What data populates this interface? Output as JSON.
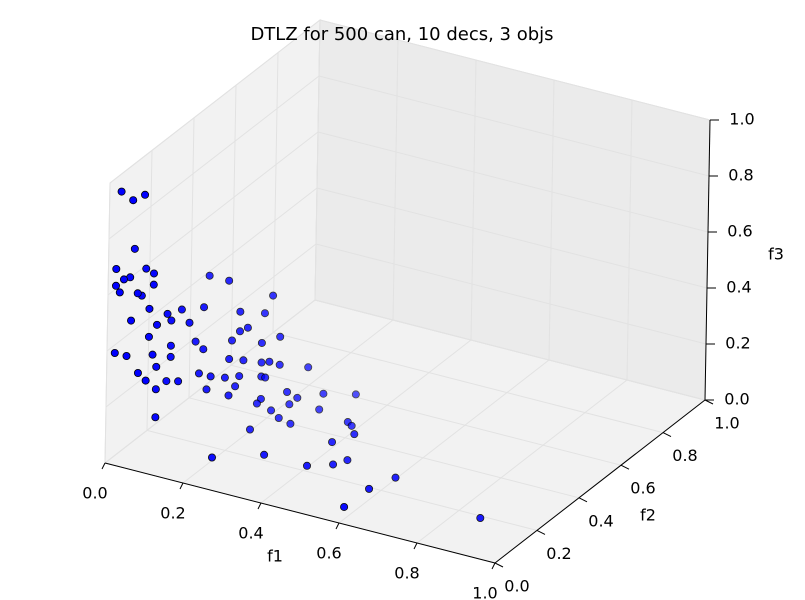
{
  "chart_data": {
    "type": "scatter3d",
    "title": "DTLZ for 500 can, 10 decs, 3 objs",
    "xlabel": "f1",
    "ylabel": "f2",
    "zlabel": "f3",
    "color": "#0000ff",
    "xlim": [
      0,
      1
    ],
    "ylim": [
      0,
      1
    ],
    "zlim": [
      0,
      1
    ],
    "xticks": [
      {
        "value": 0,
        "label": "0.0"
      },
      0.2,
      0.4,
      0.6,
      0.8,
      {
        "value": 1,
        "label": "1.0"
      }
    ],
    "yticks": [
      {
        "value": 0,
        "label": "0.0"
      },
      0.2,
      0.4,
      0.6,
      0.8,
      {
        "value": 1,
        "label": "1.0"
      }
    ],
    "zticks": [
      {
        "value": 0,
        "label": "0.0"
      },
      0.2,
      0.4,
      0.6,
      0.8,
      {
        "value": 1,
        "label": "1.0"
      }
    ],
    "grid": true,
    "x": [
      0.03,
      0.06,
      0.09,
      0.04,
      0.02,
      0.07,
      0.09,
      0.04,
      0.04,
      0.02,
      0.09,
      0.03,
      0.06,
      0.06,
      0.1,
      0.15,
      0.21,
      0.08,
      0.1,
      0.11,
      0.14,
      0.18,
      0.06,
      0.11,
      0.1,
      0.13,
      0.2,
      0.18,
      0.19,
      0.23,
      0.08,
      0.12,
      0.14,
      0.16,
      0.21,
      0.11,
      0.02,
      0.05,
      0.09,
      0.11,
      0.18,
      0.19,
      0.21,
      0.23,
      0.25,
      0.08,
      0.1,
      0.13,
      0.16,
      0.17,
      0.18,
      0.23,
      0.21,
      0.22,
      0.1,
      0.1,
      0.13,
      0.1,
      0.15,
      0.18,
      0.17,
      0.25,
      0.29,
      0.32,
      0.25,
      0.21,
      0.2,
      0.21,
      0.23,
      0.28,
      0.1,
      0.23,
      0.21,
      0.26,
      0.38,
      0.39,
      0.45,
      0.42,
      0.22,
      0.3,
      0.41,
      0.45,
      0.46,
      0.58,
      0.61,
      0.57,
      0.86
    ],
    "y": [
      0,
      0,
      0,
      0.05,
      0,
      0.05,
      0.05,
      0.03,
      0,
      0,
      0.05,
      0,
      0.03,
      0.05,
      0.3,
      0.3,
      0.4,
      0.05,
      0.1,
      0.15,
      0.2,
      0.3,
      0,
      0.1,
      0.05,
      0.15,
      0.3,
      0.3,
      0.4,
      0.4,
      0.05,
      0.2,
      0.2,
      0.3,
      0.35,
      0.1,
      0,
      0,
      0.05,
      0.1,
      0.25,
      0.3,
      0.35,
      0.4,
      0.5,
      0,
      0.05,
      0.2,
      0.2,
      0.25,
      0.3,
      0.35,
      0.35,
      0.35,
      0,
      0.1,
      0.1,
      0.05,
      0.2,
      0.25,
      0.3,
      0.4,
      0.5,
      0.6,
      0.45,
      0.35,
      0.35,
      0.4,
      0.45,
      0.5,
      0.05,
      0.4,
      0.3,
      0.4,
      0.45,
      0.45,
      0.35,
      0.3,
      0.1,
      0.2,
      0.2,
      0.25,
      0.3,
      0.18,
      0.25,
      0.08,
      0.19
    ],
    "z": [
      0.98,
      0.96,
      0.99,
      0.75,
      0.7,
      0.69,
      0.68,
      0.66,
      0.67,
      0.64,
      0.64,
      0.62,
      0.61,
      0.59,
      0.53,
      0.53,
      0.44,
      0.55,
      0.51,
      0.5,
      0.49,
      0.43,
      0.53,
      0.49,
      0.5,
      0.46,
      0.38,
      0.36,
      0.37,
      0.3,
      0.45,
      0.36,
      0.34,
      0.32,
      0.3,
      0.4,
      0.4,
      0.4,
      0.39,
      0.36,
      0.29,
      0.26,
      0.23,
      0.2,
      0.14,
      0.35,
      0.35,
      0.25,
      0.25,
      0.22,
      0.2,
      0.24,
      0.18,
      0.18,
      0.33,
      0.27,
      0.28,
      0.27,
      0.2,
      0.16,
      0.16,
      0.11,
      0.06,
      0.01,
      0.06,
      0.1,
      0.08,
      0.03,
      0.03,
      0,
      0.17,
      0.01,
      0.02,
      0,
      0.02,
      0.01,
      0.06,
      0.05,
      0.04,
      0.02,
      0.02,
      0.01,
      0,
      0.01,
      0.02,
      0,
      0
    ]
  }
}
